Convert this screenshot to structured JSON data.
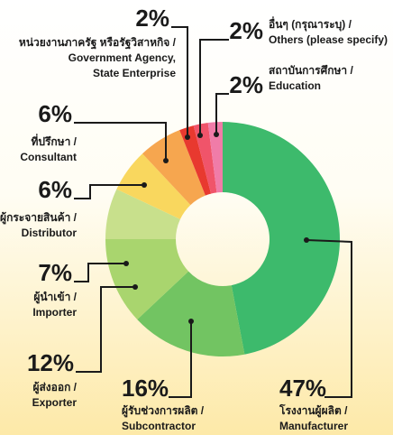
{
  "chart_data": {
    "type": "donut",
    "categories": [
      [
        "โรงงานผู้ผลิต /",
        "Manufacturer"
      ],
      [
        "ผู้รับช่วงการผลิต /",
        "Subcontractor"
      ],
      [
        "ผู้ส่งออก /",
        "Exporter"
      ],
      [
        "ผู้นำเข้า /",
        "Importer"
      ],
      [
        "ผู้กระจายสินค้า /",
        "Distributor"
      ],
      [
        "ที่ปรึกษา /",
        "Consultant"
      ],
      [
        "หน่วยงานภาครัฐ หรือรัฐวิสาหกิจ /",
        "Government Agency,",
        "State Enterprise"
      ],
      [
        "อื่นๆ (กรุณาระบุ) /",
        "Others (please specify)"
      ],
      [
        "สถาบันการศึกษา /",
        "Education"
      ]
    ],
    "values": [
      47,
      16,
      12,
      7,
      6,
      6,
      2,
      2,
      2
    ],
    "value_labels": [
      "47%",
      "16%",
      "12%",
      "7%",
      "6%",
      "6%",
      "2%",
      "2%",
      "2%"
    ],
    "colors": [
      "#3dba6c",
      "#72c462",
      "#a9d56e",
      "#c8e08c",
      "#f9d75e",
      "#f6a64f",
      "#e8392f",
      "#f0546a",
      "#f07ca8"
    ]
  }
}
